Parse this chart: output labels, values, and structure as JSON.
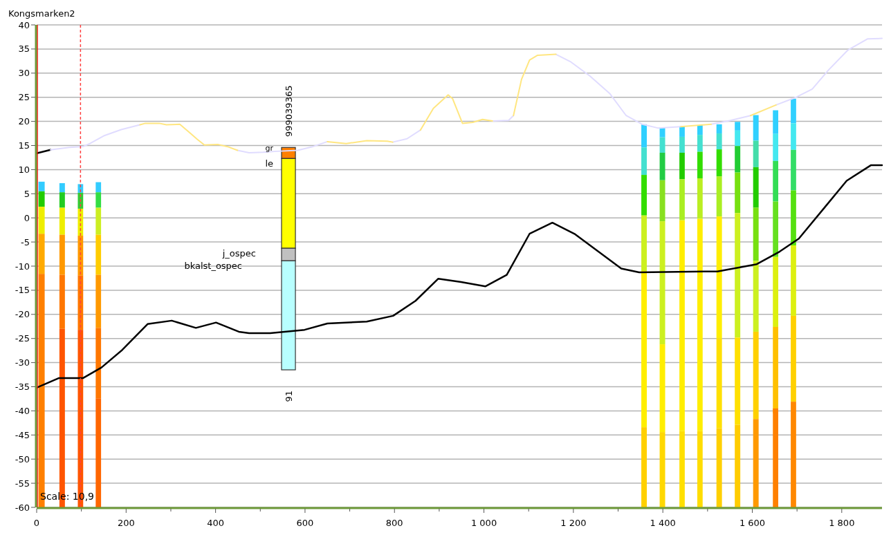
{
  "chart_data": {
    "type": "line",
    "title": "Kongsmarken2",
    "xlim": [
      0,
      1890
    ],
    "ylim": [
      -60,
      40
    ],
    "xticks": [
      0,
      {
        "value": 100,
        "label": null
      },
      200,
      {
        "value": 300,
        "label": null
      },
      400,
      {
        "value": 500,
        "label": null
      },
      600,
      {
        "value": 700,
        "label": null
      },
      800,
      {
        "value": 900,
        "label": null
      },
      {
        "value": 1000,
        "label": "1 000"
      },
      {
        "value": 1100,
        "label": null
      },
      {
        "value": 1200,
        "label": "1 200"
      },
      {
        "value": 1300,
        "label": null
      },
      {
        "value": 1400,
        "label": "1 400"
      },
      {
        "value": 1500,
        "label": null
      },
      {
        "value": 1600,
        "label": "1 600"
      },
      {
        "value": 1700,
        "label": null
      },
      {
        "value": 1800,
        "label": "1 800"
      }
    ],
    "yticks": [
      -60,
      -55,
      -50,
      -45,
      -40,
      -35,
      -30,
      -25,
      -20,
      -15,
      -10,
      -5,
      0,
      5,
      10,
      15,
      20,
      25,
      30,
      35,
      40
    ],
    "grid": "y",
    "series": [
      {
        "type": "bar",
        "x": [
          11,
          57,
          98,
          138,
          563,
          1358,
          1399,
          1443,
          1483,
          1526,
          1567,
          1608,
          1652,
          1692
        ],
        "base": [
          5.5,
          5.3,
          5.2,
          5.3,
          12.3,
          14.6,
          16.7,
          16.8,
          17.2,
          17.5,
          18.1,
          16.0,
          17.4,
          19.6
        ],
        "values": [
          2.0,
          1.9,
          1.8,
          2.1,
          2.3,
          4.8,
          2.0,
          2.2,
          2.0,
          1.9,
          1.8,
          5.3,
          4.9,
          5.1
        ],
        "colors": [
          "#33ccff",
          "#33ccff",
          "#33ccff",
          "#33ccff",
          "#ff8000",
          "#30d0ff",
          "#30d0ff",
          "#30d0ff",
          "#30d0ff",
          "#30d0ff",
          "#30d0ff",
          "#30d0ff",
          "#30d0ff",
          "#30d0ff"
        ]
      },
      {
        "type": "bar",
        "x": [
          11,
          57,
          98,
          138,
          563,
          1358,
          1399,
          1443,
          1483,
          1526,
          1567,
          1608,
          1652,
          1692
        ],
        "base": [
          2.3,
          2.1,
          1.9,
          2.1,
          -6.3,
          8.9,
          13.5,
          13.5,
          13.7,
          14.2,
          14.9,
          10.5,
          11.8,
          14.1
        ],
        "values": [
          3.2,
          3.2,
          3.3,
          3.2,
          18.6,
          5.7,
          3.2,
          3.3,
          3.5,
          3.3,
          3.2,
          5.5,
          5.6,
          5.5
        ],
        "colors": [
          "#22cc00",
          "#22cc22",
          "#33cc33",
          "#33dd44",
          "#ffff00",
          "#44e0d0",
          "#44e0d0",
          "#44e0d0",
          "#44e0d0",
          "#44e0d0",
          "#44e8f0",
          "#44ddaa",
          "#44e8f0",
          "#44e8f0"
        ]
      },
      {
        "type": "bar",
        "x": [
          11,
          57,
          98,
          138,
          563,
          1358,
          1399,
          1443,
          1483,
          1526,
          1567,
          1608,
          1652,
          1692
        ],
        "base": [
          -3.3,
          -3.5,
          -3.7,
          -3.5,
          -8.9,
          0.5,
          7.8,
          8.0,
          8.2,
          8.6,
          9.4,
          2.1,
          3.4,
          5.7
        ],
        "values": [
          5.6,
          5.6,
          5.6,
          5.6,
          2.6,
          8.4,
          5.7,
          5.5,
          5.5,
          5.6,
          5.5,
          8.4,
          8.4,
          8.4
        ],
        "colors": [
          "#eeee00",
          "#eeee00",
          "#eeee00",
          "#ccee22",
          "#c0c0c0",
          "#33dd00",
          "#22cc44",
          "#22cc00",
          "#33dd00",
          "#33dd00",
          "#22cc33",
          "#22cc00",
          "#33dd55",
          "#33dd66"
        ]
      },
      {
        "type": "bar",
        "x": [
          11,
          57,
          98,
          138,
          563,
          1358,
          1399,
          1443,
          1483,
          1526,
          1567,
          1608,
          1652,
          1692
        ],
        "base": [
          -11.6,
          -11.8,
          -11.9,
          -11.8,
          -31.5,
          -11.0,
          -0.7,
          -0.5,
          -0.2,
          0.3,
          1.0,
          -8.9,
          -8.1,
          -5.7
        ],
        "values": [
          8.3,
          8.3,
          8.2,
          8.3,
          22.6,
          11.5,
          8.5,
          8.5,
          8.4,
          8.3,
          8.4,
          11.0,
          11.5,
          11.4
        ],
        "colors": [
          "#ffaa00",
          "#ff9900",
          "#ff9900",
          "#ffcc00",
          "#b8ffff",
          "#ccf020",
          "#88e020",
          "#aaee22",
          "#bbee22",
          "#aaee22",
          "#77e010",
          "#77e010",
          "#66e020",
          "#55e010"
        ]
      },
      {
        "type": "bar",
        "x": [
          11,
          57,
          98,
          138,
          1358,
          1399,
          1443,
          1483,
          1526,
          1567,
          1608,
          1652,
          1692
        ],
        "base": [
          -60,
          -23.0,
          -23.2,
          -22.8,
          -43.4,
          -26.2,
          -44.2,
          -44.2,
          -25.0,
          -24.8,
          -23.6,
          -22.6,
          -20.3
        ],
        "values": [
          48.4,
          11.2,
          11.3,
          11.0,
          32.4,
          25.5,
          43.7,
          44.0,
          25.3,
          25.8,
          14.7,
          14.5,
          14.6
        ],
        "colors": [
          "#ff8000",
          "#ff7700",
          "#ff7700",
          "#ff9900",
          "#ffee00",
          "#ccf020",
          "#ffee00",
          "#ffee00",
          "#ffee00",
          "#ccf020",
          "#ccf020",
          "#ddf010",
          "#ddf010"
        ]
      },
      {
        "type": "bar",
        "x": [
          57,
          98,
          138,
          1358,
          1399,
          1443,
          1483,
          1526,
          1567,
          1608,
          1652,
          1692
        ],
        "base": [
          -60,
          -60,
          -37.4,
          -60,
          -44.4,
          -60,
          -60,
          -43.6,
          -42.9,
          -41.7,
          -40.5,
          -38.1
        ],
        "values": [
          37.0,
          36.8,
          14.6,
          16.6,
          18.2,
          15.8,
          15.8,
          18.6,
          18.1,
          18.1,
          17.9,
          17.8
        ],
        "colors": [
          "#ff5500",
          "#ff5500",
          "#ff7700",
          "#ffd000",
          "#ffee00",
          "#ffe000",
          "#ffdd00",
          "#ffe000",
          "#ffe000",
          "#ffd000",
          "#ffc000",
          "#ffd000"
        ]
      },
      {
        "type": "bar",
        "x": [
          138,
          1399,
          1526,
          1567,
          1608,
          1652,
          1692
        ],
        "base": [
          -60,
          -60,
          -60,
          -60,
          -60,
          -60,
          -60
        ],
        "values": [
          22.6,
          15.6,
          16.4,
          17.1,
          18.3,
          20.5,
          21.9
        ],
        "colors": [
          "#ff6600",
          "#ffd800",
          "#ffd000",
          "#ffcc00",
          "#ff9900",
          "#ff8000",
          "#ff8800"
        ]
      },
      {
        "color": "#000000",
        "x": [
          0,
          31
        ],
        "values": [
          13.4,
          14.1
        ]
      },
      {
        "color": "#e0dcff",
        "x": [
          31,
          73,
          104,
          119,
          150,
          189,
          231,
          340,
          449,
          475,
          506,
          537,
          584,
          615,
          650,
          720,
          796,
          828,
          858,
          940,
          1019,
          1055,
          1066,
          1110,
          1161,
          1193,
          1237,
          1282,
          1318,
          1354,
          1390,
          1440,
          1475,
          1508,
          1551,
          1596,
          1625,
          1653,
          1698,
          1734,
          1771,
          1814,
          1858,
          1890
        ],
        "values": [
          14.1,
          14.6,
          14.8,
          15.4,
          17.0,
          18.3,
          19.3,
          null,
          14.0,
          13.5,
          13.6,
          13.8,
          14.0,
          14.7,
          15.8,
          null,
          15.7,
          16.4,
          18.2,
          null,
          20.1,
          20.2,
          21.2,
          null,
          33.9,
          32.4,
          29.4,
          25.7,
          21.2,
          19.4,
          18.6,
          18.9,
          null,
          19.4,
          20.2,
          21.2,
          null,
          23.4,
          25.0,
          26.7,
          30.7,
          34.8,
          37.1,
          37.2
        ]
      },
      {
        "color": "#ffe680",
        "x": [
          231,
          243,
          274,
          290,
          320,
          344,
          359,
          375,
          406,
          429,
          449,
          550,
          650,
          692,
          738,
          784,
          796,
          827,
          858,
          887,
          920,
          930,
          952,
          975,
          997,
          1019,
          1040,
          1066,
          1084,
          1102,
          1120,
          1161,
          1300,
          1440,
          1508,
          1550,
          1596,
          1653
        ],
        "values": [
          19.3,
          19.6,
          19.6,
          19.3,
          19.4,
          17.5,
          16.3,
          15.1,
          15.2,
          14.7,
          14.0,
          null,
          15.8,
          15.4,
          16.0,
          15.9,
          15.7,
          null,
          18.2,
          22.7,
          25.5,
          24.7,
          19.6,
          19.8,
          20.4,
          20.1,
          null,
          21.2,
          28.7,
          32.7,
          33.7,
          33.9,
          null,
          18.9,
          19.4,
          null,
          21.2,
          23.4
        ]
      },
      {
        "color": "#000000",
        "x": [
          0,
          50,
          104,
          145,
          191,
          248,
          302,
          356,
          401,
          452,
          475,
          522,
          599,
          650,
          738,
          797,
          847,
          898,
          949,
          1003,
          1051,
          1102,
          1153,
          1204,
          1307,
          1347,
          1406,
          1522,
          1610,
          1661,
          1704,
          1763,
          1811,
          1865,
          1890
        ],
        "values": [
          -35.2,
          -33.2,
          -33.2,
          -31.0,
          -27.4,
          -22.0,
          -21.3,
          -22.8,
          -21.7,
          -23.6,
          -23.9,
          -23.9,
          -23.2,
          -21.9,
          -21.5,
          -20.3,
          -17.2,
          -12.6,
          -13.3,
          -14.2,
          -11.8,
          -3.3,
          -1.0,
          -3.4,
          -10.5,
          -11.3,
          -11.2,
          -11.1,
          -9.6,
          -7.0,
          -4.3,
          2.3,
          7.7,
          10.9,
          10.9
        ]
      }
    ],
    "ref_lines": [
      {
        "axis": "x",
        "value": 98,
        "color": "#ff4040",
        "line_style": "dashed"
      },
      {
        "axis": "x",
        "value": 0,
        "color": "#ff0000",
        "line_style": "solid"
      }
    ],
    "annotations": [
      "gr",
      "le",
      "j_ospec",
      "bkalst_ospec",
      "999039365",
      "91",
      "Scale: 10,9"
    ]
  }
}
